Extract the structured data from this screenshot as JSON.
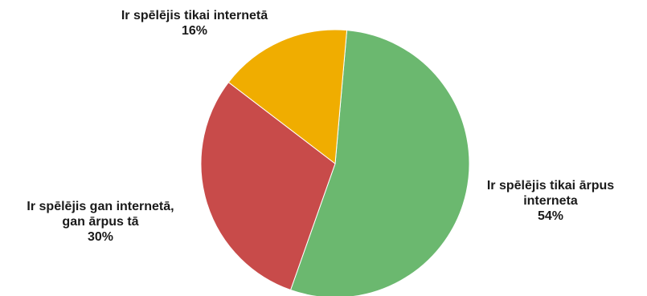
{
  "chart_data": {
    "type": "pie",
    "title": "",
    "slices": [
      {
        "label_lines": [
          "Ir spēlējis tikai ārpus",
          "interneta"
        ],
        "value": 54,
        "value_label": "54%",
        "color": "#6bb86f"
      },
      {
        "label_lines": [
          "Ir spēlējis gan internetā,",
          "gan ārpus tā"
        ],
        "value": 30,
        "value_label": "30%",
        "color": "#c84b4a"
      },
      {
        "label_lines": [
          "Ir spēlējis tikai internetā"
        ],
        "value": 16,
        "value_label": "16%",
        "color": "#f0ad00"
      }
    ],
    "legend": "none",
    "labels_position": "outside"
  }
}
